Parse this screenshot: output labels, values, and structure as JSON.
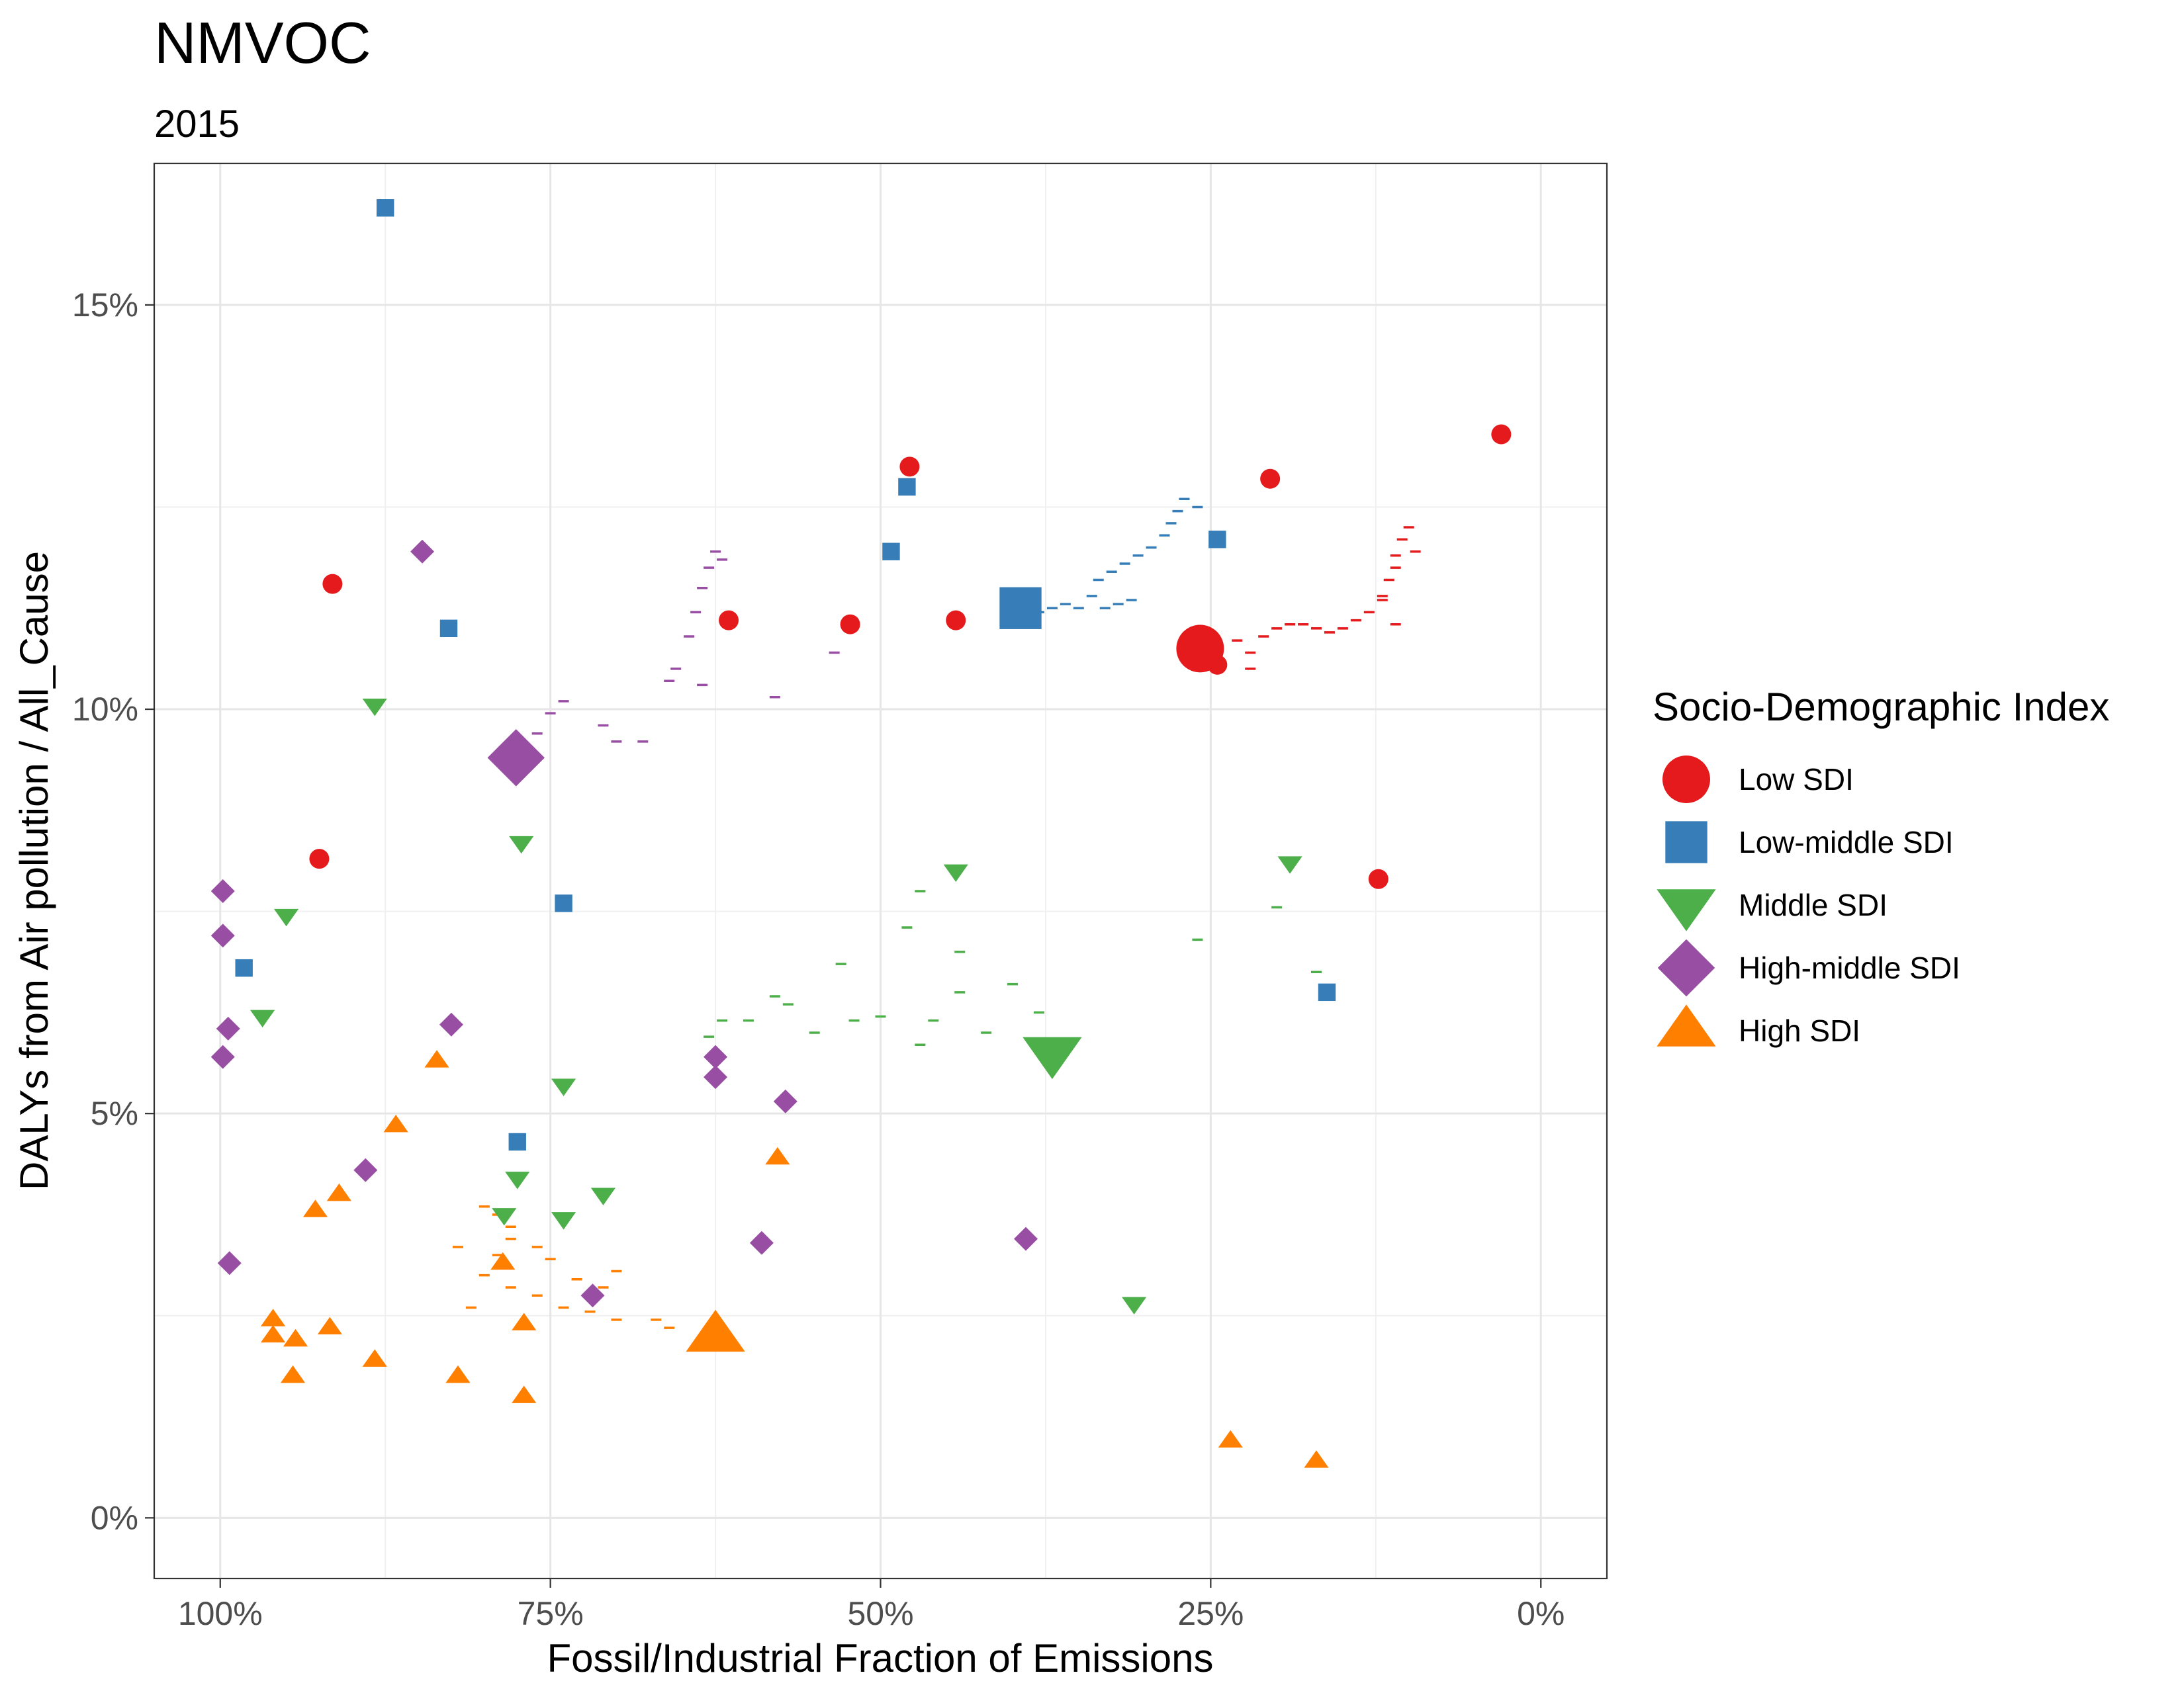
{
  "chart_data": {
    "type": "scatter",
    "title": "NMVOC",
    "subtitle": "2015",
    "xlabel": "Fossil/Industrial Fraction of Emissions",
    "ylabel": "DALYs from Air pollution / All_Cause",
    "x_reversed": true,
    "xlim": [
      1.05,
      -0.05
    ],
    "ylim": [
      -0.75,
      16.75
    ],
    "x_ticks": [
      {
        "value": 1.0,
        "label": "100%"
      },
      {
        "value": 0.75,
        "label": "75%"
      },
      {
        "value": 0.5,
        "label": "50%"
      },
      {
        "value": 0.25,
        "label": "25%"
      },
      {
        "value": 0.0,
        "label": "0%"
      }
    ],
    "y_ticks": [
      {
        "value": 0,
        "label": "0%"
      },
      {
        "value": 5,
        "label": "5%"
      },
      {
        "value": 10,
        "label": "10%"
      },
      {
        "value": 15,
        "label": "15%"
      }
    ],
    "grid": true,
    "legend": {
      "title": "Socio-Demographic Index",
      "placement": "right",
      "entries": [
        "Low SDI",
        "Low-middle SDI",
        "Middle SDI",
        "High-middle SDI",
        "High SDI"
      ]
    },
    "series": [
      {
        "name": "Low SDI",
        "color": "#E41A1C",
        "shape": "circle",
        "aggregate": {
          "x": 0.258,
          "y": 10.75
        },
        "points": [
          {
            "x": 0.03,
            "y": 13.4
          },
          {
            "x": 0.478,
            "y": 13.0
          },
          {
            "x": 0.205,
            "y": 12.85
          },
          {
            "x": 0.915,
            "y": 11.55
          },
          {
            "x": 0.615,
            "y": 11.1
          },
          {
            "x": 0.523,
            "y": 11.05
          },
          {
            "x": 0.443,
            "y": 11.1
          },
          {
            "x": 0.245,
            "y": 10.55
          },
          {
            "x": 0.925,
            "y": 8.15
          },
          {
            "x": 0.123,
            "y": 7.9
          }
        ],
        "trail": [
          {
            "x": 0.25,
            "y": 10.75
          },
          {
            "x": 0.23,
            "y": 10.85
          },
          {
            "x": 0.22,
            "y": 10.7
          },
          {
            "x": 0.21,
            "y": 10.9
          },
          {
            "x": 0.2,
            "y": 11.0
          },
          {
            "x": 0.19,
            "y": 11.05
          },
          {
            "x": 0.18,
            "y": 11.05
          },
          {
            "x": 0.17,
            "y": 11.0
          },
          {
            "x": 0.16,
            "y": 10.95
          },
          {
            "x": 0.15,
            "y": 11.0
          },
          {
            "x": 0.14,
            "y": 11.1
          },
          {
            "x": 0.13,
            "y": 11.2
          },
          {
            "x": 0.12,
            "y": 11.35
          },
          {
            "x": 0.115,
            "y": 11.6
          },
          {
            "x": 0.11,
            "y": 11.9
          },
          {
            "x": 0.105,
            "y": 12.1
          },
          {
            "x": 0.1,
            "y": 12.25
          },
          {
            "x": 0.095,
            "y": 11.95
          },
          {
            "x": 0.11,
            "y": 11.75
          },
          {
            "x": 0.12,
            "y": 11.4
          },
          {
            "x": 0.11,
            "y": 11.05
          },
          {
            "x": 0.22,
            "y": 10.5
          }
        ]
      },
      {
        "name": "Low-middle SDI",
        "color": "#377EB8",
        "shape": "square",
        "aggregate": {
          "x": 0.394,
          "y": 11.25
        },
        "points": [
          {
            "x": 0.875,
            "y": 16.2
          },
          {
            "x": 0.48,
            "y": 12.75
          },
          {
            "x": 0.245,
            "y": 12.1
          },
          {
            "x": 0.492,
            "y": 11.95
          },
          {
            "x": 0.827,
            "y": 11.0
          },
          {
            "x": 0.74,
            "y": 7.6
          },
          {
            "x": 0.982,
            "y": 6.8
          },
          {
            "x": 0.162,
            "y": 6.5
          },
          {
            "x": 0.775,
            "y": 4.65
          }
        ],
        "trail": [
          {
            "x": 0.38,
            "y": 11.2
          },
          {
            "x": 0.37,
            "y": 11.25
          },
          {
            "x": 0.36,
            "y": 11.3
          },
          {
            "x": 0.35,
            "y": 11.25
          },
          {
            "x": 0.34,
            "y": 11.4
          },
          {
            "x": 0.335,
            "y": 11.6
          },
          {
            "x": 0.325,
            "y": 11.7
          },
          {
            "x": 0.315,
            "y": 11.8
          },
          {
            "x": 0.305,
            "y": 11.9
          },
          {
            "x": 0.295,
            "y": 12.0
          },
          {
            "x": 0.285,
            "y": 12.15
          },
          {
            "x": 0.28,
            "y": 12.3
          },
          {
            "x": 0.275,
            "y": 12.45
          },
          {
            "x": 0.27,
            "y": 12.6
          },
          {
            "x": 0.26,
            "y": 12.5
          },
          {
            "x": 0.32,
            "y": 11.3
          },
          {
            "x": 0.33,
            "y": 11.25
          },
          {
            "x": 0.31,
            "y": 11.35
          }
        ]
      },
      {
        "name": "Middle SDI",
        "color": "#4DAF4A",
        "shape": "triangle-down",
        "aggregate": {
          "x": 0.37,
          "y": 5.75
        },
        "points": [
          {
            "x": 0.883,
            "y": 10.05
          },
          {
            "x": 0.772,
            "y": 8.35
          },
          {
            "x": 0.443,
            "y": 8.0
          },
          {
            "x": 0.19,
            "y": 8.1
          },
          {
            "x": 0.95,
            "y": 7.45
          },
          {
            "x": 0.968,
            "y": 6.2
          },
          {
            "x": 0.74,
            "y": 5.35
          },
          {
            "x": 0.775,
            "y": 4.2
          },
          {
            "x": 0.785,
            "y": 3.75
          },
          {
            "x": 0.74,
            "y": 3.7
          },
          {
            "x": 0.71,
            "y": 4.0
          },
          {
            "x": 0.308,
            "y": 2.65
          }
        ],
        "trail": [
          {
            "x": 0.62,
            "y": 6.15
          },
          {
            "x": 0.6,
            "y": 6.15
          },
          {
            "x": 0.57,
            "y": 6.35
          },
          {
            "x": 0.55,
            "y": 6.0
          },
          {
            "x": 0.53,
            "y": 6.85
          },
          {
            "x": 0.52,
            "y": 6.15
          },
          {
            "x": 0.5,
            "y": 6.2
          },
          {
            "x": 0.48,
            "y": 7.3
          },
          {
            "x": 0.47,
            "y": 7.75
          },
          {
            "x": 0.46,
            "y": 6.15
          },
          {
            "x": 0.44,
            "y": 6.5
          },
          {
            "x": 0.44,
            "y": 7.0
          },
          {
            "x": 0.42,
            "y": 6.0
          },
          {
            "x": 0.4,
            "y": 6.6
          },
          {
            "x": 0.38,
            "y": 6.25
          },
          {
            "x": 0.26,
            "y": 7.15
          },
          {
            "x": 0.2,
            "y": 7.55
          },
          {
            "x": 0.17,
            "y": 6.75
          },
          {
            "x": 0.47,
            "y": 5.85
          },
          {
            "x": 0.58,
            "y": 6.45
          },
          {
            "x": 0.63,
            "y": 5.95
          }
        ]
      },
      {
        "name": "High-middle SDI",
        "color": "#984EA3",
        "shape": "diamond",
        "aggregate": {
          "x": 0.776,
          "y": 9.4
        },
        "points": [
          {
            "x": 0.847,
            "y": 11.95
          },
          {
            "x": 0.998,
            "y": 7.75
          },
          {
            "x": 0.998,
            "y": 7.2
          },
          {
            "x": 0.994,
            "y": 6.05
          },
          {
            "x": 0.998,
            "y": 5.7
          },
          {
            "x": 0.825,
            "y": 6.1
          },
          {
            "x": 0.625,
            "y": 5.7
          },
          {
            "x": 0.625,
            "y": 5.45
          },
          {
            "x": 0.572,
            "y": 5.15
          },
          {
            "x": 0.89,
            "y": 4.3
          },
          {
            "x": 0.59,
            "y": 3.4
          },
          {
            "x": 0.39,
            "y": 3.45
          },
          {
            "x": 0.993,
            "y": 3.15
          },
          {
            "x": 0.718,
            "y": 2.75
          }
        ],
        "trail": [
          {
            "x": 0.76,
            "y": 9.7
          },
          {
            "x": 0.75,
            "y": 9.95
          },
          {
            "x": 0.74,
            "y": 10.1
          },
          {
            "x": 0.71,
            "y": 9.8
          },
          {
            "x": 0.7,
            "y": 9.6
          },
          {
            "x": 0.68,
            "y": 9.6
          },
          {
            "x": 0.66,
            "y": 10.35
          },
          {
            "x": 0.655,
            "y": 10.5
          },
          {
            "x": 0.645,
            "y": 10.9
          },
          {
            "x": 0.64,
            "y": 11.2
          },
          {
            "x": 0.635,
            "y": 11.5
          },
          {
            "x": 0.63,
            "y": 11.75
          },
          {
            "x": 0.625,
            "y": 11.95
          },
          {
            "x": 0.62,
            "y": 11.85
          },
          {
            "x": 0.635,
            "y": 10.3
          },
          {
            "x": 0.58,
            "y": 10.15
          },
          {
            "x": 0.535,
            "y": 10.7
          }
        ]
      },
      {
        "name": "High SDI",
        "color": "#FF7F00",
        "shape": "triangle-up",
        "aggregate": {
          "x": 0.625,
          "y": 2.25
        },
        "points": [
          {
            "x": 0.836,
            "y": 5.65
          },
          {
            "x": 0.867,
            "y": 4.85
          },
          {
            "x": 0.578,
            "y": 4.45
          },
          {
            "x": 0.91,
            "y": 4.0
          },
          {
            "x": 0.928,
            "y": 3.8
          },
          {
            "x": 0.786,
            "y": 3.15
          },
          {
            "x": 0.96,
            "y": 2.45
          },
          {
            "x": 0.96,
            "y": 2.25
          },
          {
            "x": 0.943,
            "y": 2.2
          },
          {
            "x": 0.917,
            "y": 2.35
          },
          {
            "x": 0.77,
            "y": 2.4
          },
          {
            "x": 0.883,
            "y": 1.95
          },
          {
            "x": 0.945,
            "y": 1.75
          },
          {
            "x": 0.82,
            "y": 1.75
          },
          {
            "x": 0.77,
            "y": 1.5
          },
          {
            "x": 0.235,
            "y": 0.95
          },
          {
            "x": 0.17,
            "y": 0.7
          }
        ],
        "trail": [
          {
            "x": 0.66,
            "y": 2.35
          },
          {
            "x": 0.67,
            "y": 2.45
          },
          {
            "x": 0.7,
            "y": 2.45
          },
          {
            "x": 0.72,
            "y": 2.55
          },
          {
            "x": 0.74,
            "y": 2.6
          },
          {
            "x": 0.76,
            "y": 2.75
          },
          {
            "x": 0.78,
            "y": 2.85
          },
          {
            "x": 0.8,
            "y": 3.0
          },
          {
            "x": 0.79,
            "y": 3.25
          },
          {
            "x": 0.78,
            "y": 3.45
          },
          {
            "x": 0.78,
            "y": 3.6
          },
          {
            "x": 0.79,
            "y": 3.75
          },
          {
            "x": 0.8,
            "y": 3.85
          },
          {
            "x": 0.82,
            "y": 3.35
          },
          {
            "x": 0.81,
            "y": 2.6
          },
          {
            "x": 0.73,
            "y": 2.95
          },
          {
            "x": 0.7,
            "y": 3.05
          },
          {
            "x": 0.76,
            "y": 3.35
          },
          {
            "x": 0.75,
            "y": 3.2
          },
          {
            "x": 0.71,
            "y": 2.85
          }
        ]
      }
    ]
  }
}
